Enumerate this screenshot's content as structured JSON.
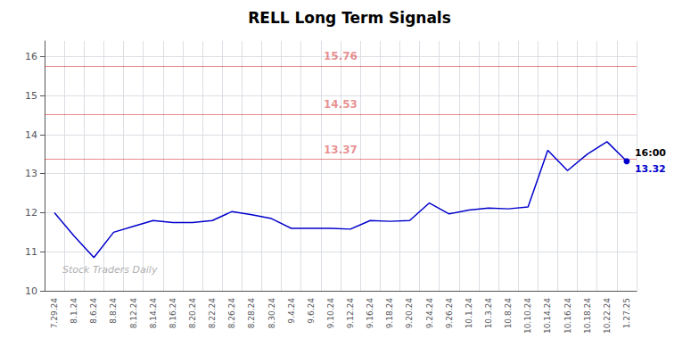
{
  "chart_data": {
    "type": "line",
    "title": "RELL Long Term Signals",
    "categories": [
      "7.29.24",
      "8.1.24",
      "8.6.24",
      "8.8.24",
      "8.12.24",
      "8.14.24",
      "8.16.24",
      "8.20.24",
      "8.22.24",
      "8.26.24",
      "8.28.24",
      "8.30.24",
      "9.4.24",
      "9.6.24",
      "9.10.24",
      "9.12.24",
      "9.16.24",
      "9.18.24",
      "9.20.24",
      "9.24.24",
      "9.26.24",
      "10.1.24",
      "10.3.24",
      "10.8.24",
      "10.10.24",
      "10.14.24",
      "10.16.24",
      "10.18.24",
      "10.22.24",
      "1.27.25"
    ],
    "values": [
      12.0,
      11.4,
      10.85,
      11.5,
      11.65,
      11.8,
      11.75,
      11.75,
      11.8,
      12.03,
      11.95,
      11.85,
      11.6,
      11.6,
      11.6,
      11.58,
      11.8,
      11.78,
      11.8,
      12.25,
      11.97,
      12.07,
      12.12,
      12.1,
      12.15,
      13.6,
      13.08,
      13.5,
      13.82,
      13.32
    ],
    "color": "#0000cc",
    "ylim": [
      10,
      16.4
    ],
    "yticks": [
      10,
      11,
      12,
      13,
      14,
      15,
      16
    ],
    "grid": true,
    "hlines": [
      {
        "value": 15.76,
        "label": "15.76",
        "color": "#cc0000"
      },
      {
        "value": 14.53,
        "label": "14.53",
        "color": "#cc0000"
      },
      {
        "value": 13.37,
        "label": "13.37",
        "color": "#cc0000"
      }
    ],
    "annotations": [
      {
        "text": "16:00",
        "x": "1.27.25",
        "y": 13.32,
        "color": "#000000"
      },
      {
        "text": "13.32",
        "x": "1.27.25",
        "y": 13.32,
        "color": "#0000cc"
      }
    ],
    "watermark": "Stock Traders Daily"
  }
}
